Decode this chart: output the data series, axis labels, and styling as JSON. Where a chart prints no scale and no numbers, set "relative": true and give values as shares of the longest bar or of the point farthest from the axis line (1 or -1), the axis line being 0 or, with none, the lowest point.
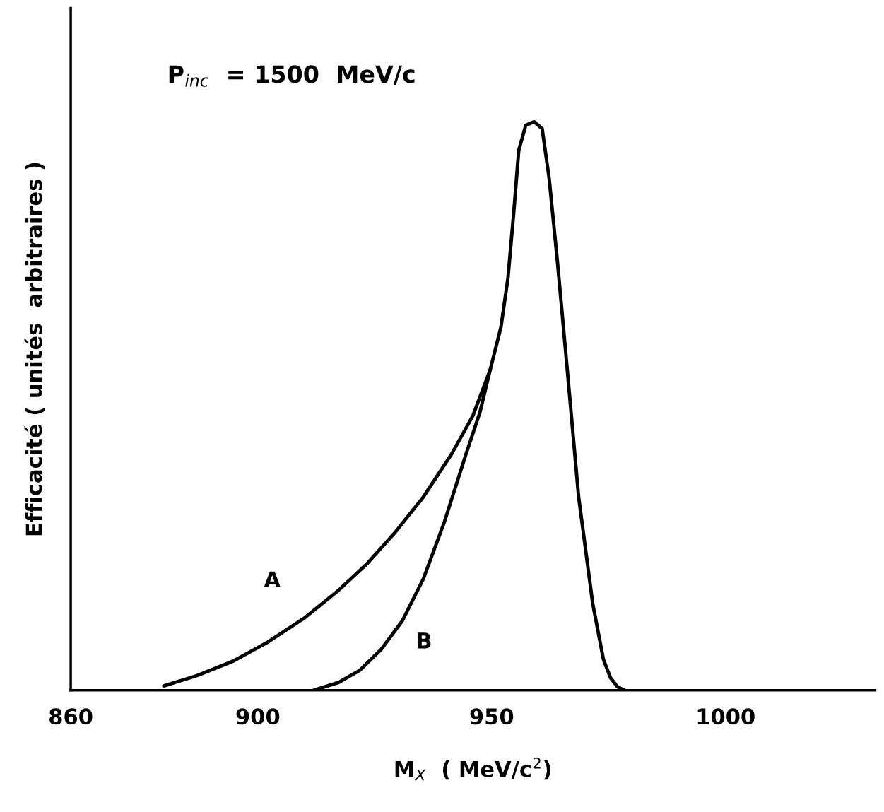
{
  "chart_data": {
    "type": "line",
    "relative": true,
    "xlabel": "M$_{X}$  ( MeV/c$^{2}$)",
    "ylabel": "Efficacité ( unités  arbitraires )",
    "xlim": [
      860,
      1032
    ],
    "xticks": [
      860,
      900,
      950,
      1000
    ],
    "grid": false,
    "legend": false,
    "marker": "none",
    "line_style": "solid",
    "series": [
      {
        "name": "A",
        "color": "#000000",
        "x": [
          879.9,
          887.1,
          894.7,
          902.2,
          909.8,
          917.3,
          923.3,
          929.4,
          935.4,
          941.4,
          946.0,
          949.7,
          952.0,
          953.5,
          954.7,
          955.8,
          957.3,
          959.1,
          960.8,
          962.3,
          964.1,
          966.3,
          968.6,
          971.6,
          973.9,
          975.4,
          976.9,
          978.4
        ],
        "values": [
          0.0075,
          0.026,
          0.051,
          0.085,
          0.126,
          0.176,
          0.222,
          0.278,
          0.34,
          0.415,
          0.483,
          0.564,
          0.639,
          0.726,
          0.838,
          0.95,
          0.994,
          1.0,
          0.988,
          0.9,
          0.751,
          0.552,
          0.34,
          0.153,
          0.054,
          0.022,
          0.006,
          0
        ]
      },
      {
        "name": "B",
        "color": "#000000",
        "x": [
          912.0,
          917.3,
          921.8,
          926.4,
          930.9,
          935.4,
          939.9,
          944.5,
          947.5,
          949.7
        ],
        "values": [
          0,
          0.0137,
          0.035,
          0.072,
          0.122,
          0.196,
          0.296,
          0.415,
          0.489,
          0.564
        ]
      }
    ],
    "annotations": [
      "P$_{inc}$  = 1500  MeV/c"
    ]
  }
}
